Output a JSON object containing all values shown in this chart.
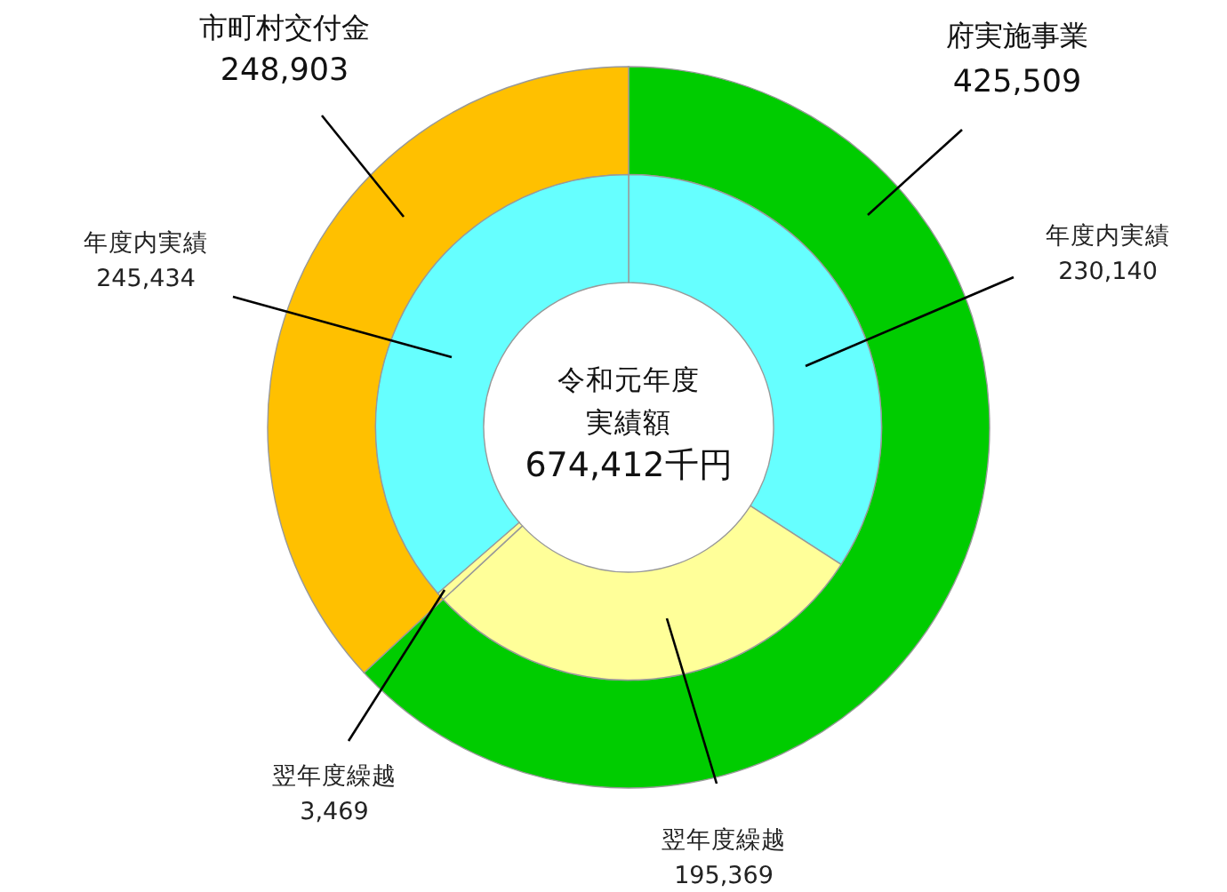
{
  "chart_data": [
    {
      "type": "donut",
      "categories": [
        "府実施事業",
        "市町村交付金"
      ],
      "values": [
        425509,
        248903
      ],
      "value_labels": [
        "425,509",
        "248,903"
      ],
      "colors": [
        "#00cc00",
        "#ffc000"
      ]
    },
    {
      "type": "donut",
      "categories": [
        "年度内実績",
        "翌年度繰越",
        "翌年度繰越",
        "年度内実績"
      ],
      "values": [
        230140,
        195369,
        3469,
        245434
      ],
      "value_labels": [
        "230,140",
        "195,369",
        "3,469",
        "245,434"
      ],
      "colors": [
        "#66ffff",
        "#ffff99",
        "#ffff99",
        "#66ffff"
      ],
      "annotations": [
        "令和元年度",
        "実績額",
        "674,412千円"
      ]
    }
  ]
}
